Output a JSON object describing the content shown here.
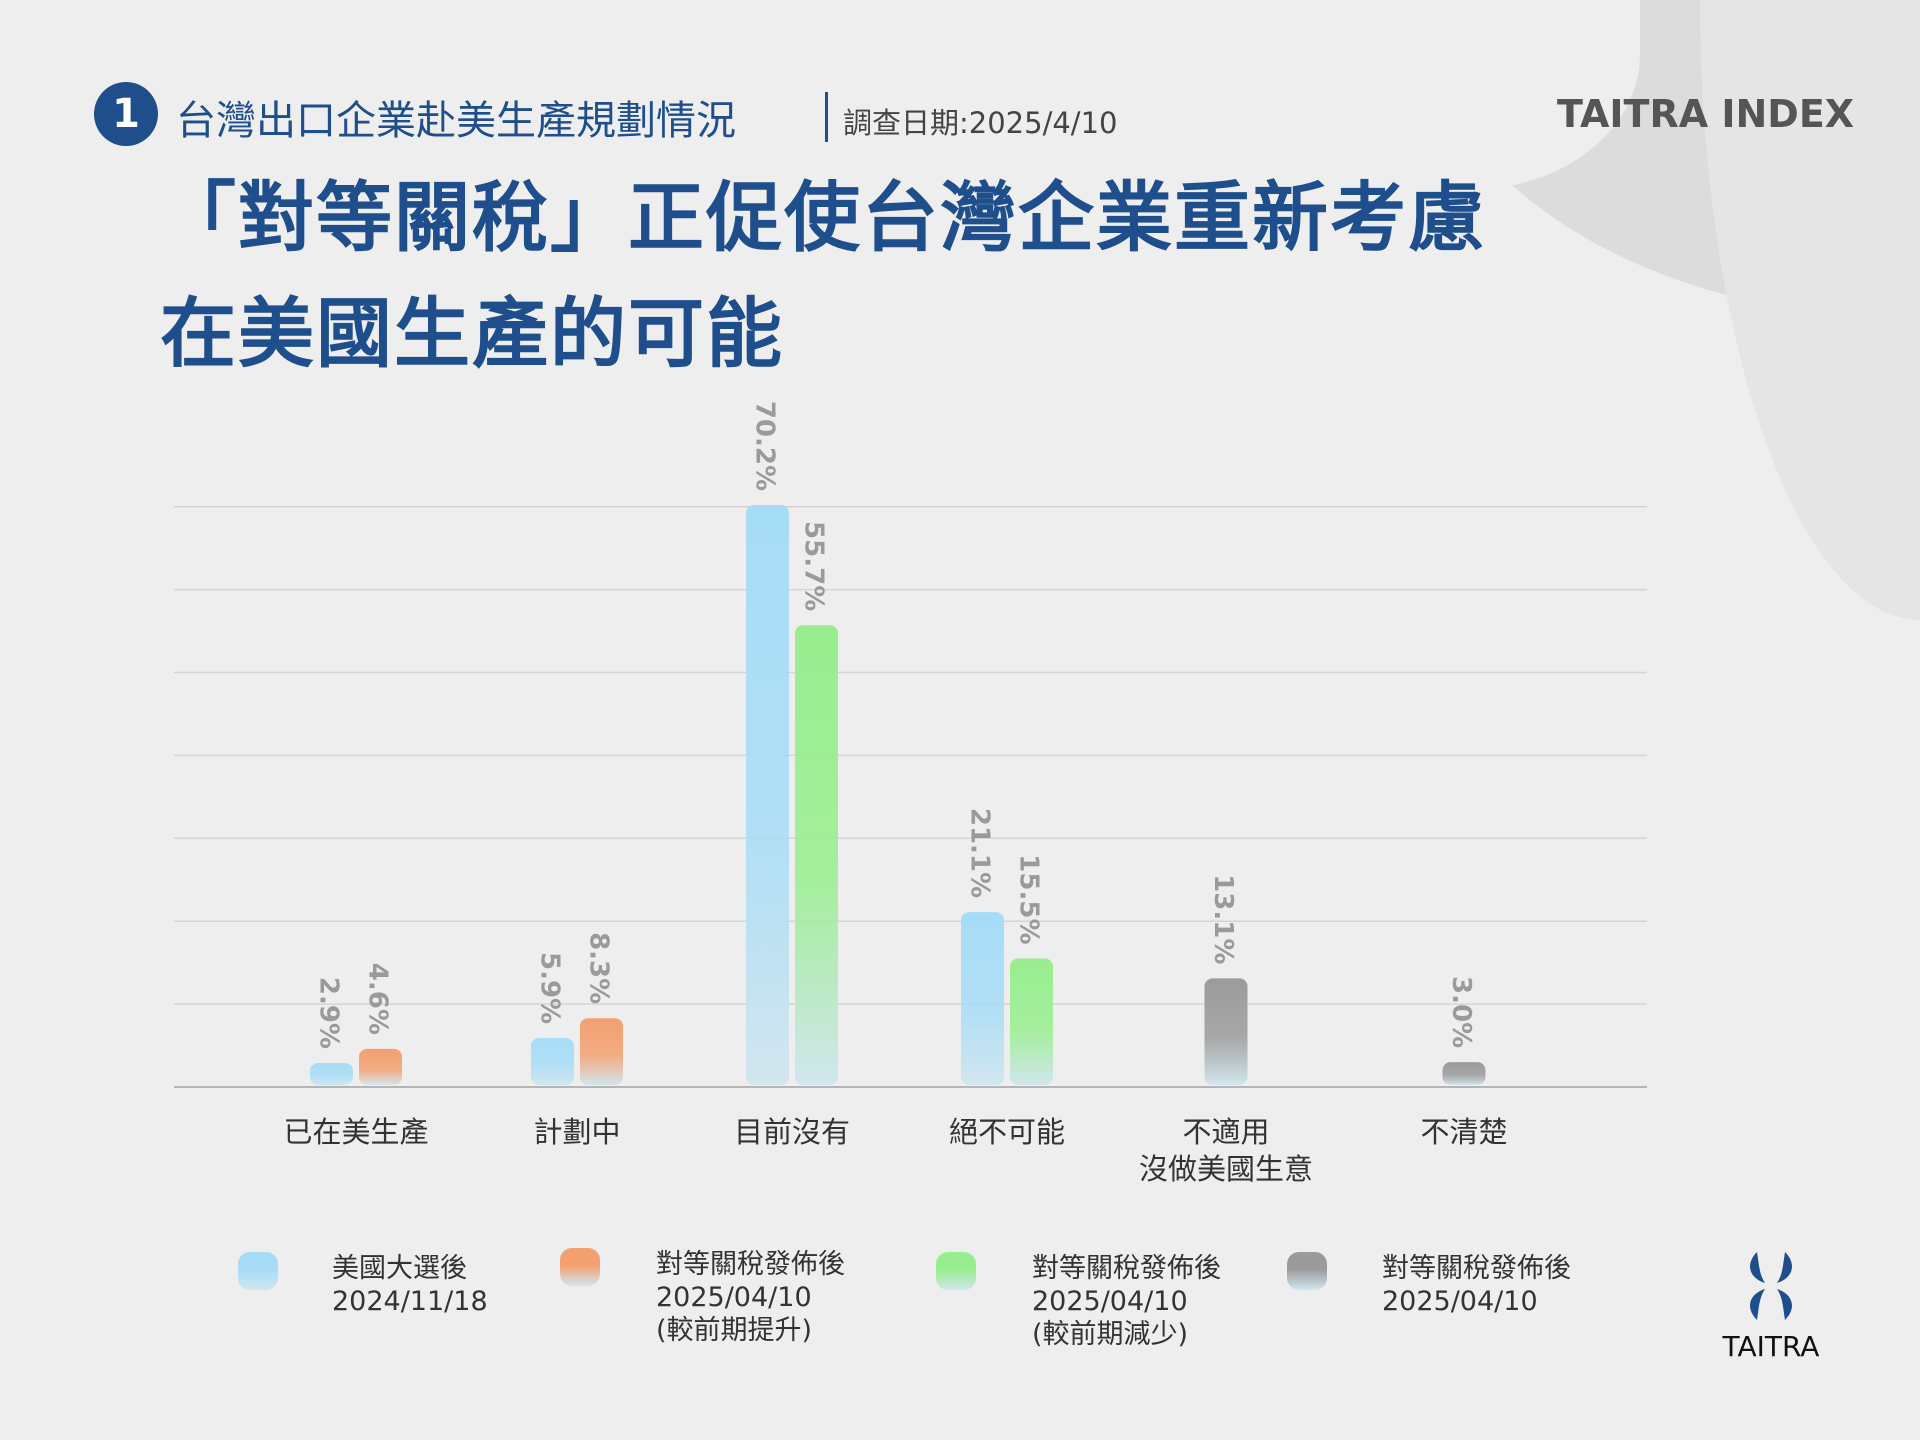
{
  "header": {
    "number": "1",
    "subtitle": "台灣出口企業赴美生產規劃情況",
    "date": "調查日期:2025/4/10",
    "brand": "TAITRA INDEX"
  },
  "title": {
    "line1": "「對等關稅」正促使台灣企業重新考慮",
    "line2": "在美國生產的可能"
  },
  "logo": {
    "text": "TAITRA"
  },
  "colors": {
    "blue": "#a6dcf7",
    "orange": "#f2a070",
    "green": "#98ee8e",
    "gray": "#9b9b9b",
    "title": "#1f4e8c"
  },
  "chart_data": {
    "type": "bar",
    "ylim": [
      0,
      70
    ],
    "grid": true,
    "categories": [
      "已在美生產",
      "計劃中",
      "目前沒有",
      "絕不可能",
      "不適用\n沒做美國生意",
      "不清楚"
    ],
    "category_lines": [
      [
        "已在美生產"
      ],
      [
        "計劃中"
      ],
      [
        "目前沒有"
      ],
      [
        "絕不可能"
      ],
      [
        "不適用",
        "沒做美國生意"
      ],
      [
        "不清楚"
      ]
    ],
    "series": [
      {
        "name": "美國大選後 2024/11/18",
        "color": "#a6dcf7",
        "values": [
          2.9,
          5.9,
          70.2,
          21.1,
          null,
          null
        ]
      },
      {
        "name": "對等關稅發佈後 2025/04/10 (較前期提升)",
        "color": "#f2a070",
        "values": [
          4.6,
          8.3,
          null,
          null,
          null,
          null
        ]
      },
      {
        "name": "對等關稅發佈後 2025/04/10 (較前期減少)",
        "color": "#98ee8e",
        "values": [
          null,
          null,
          55.7,
          15.5,
          null,
          null
        ]
      },
      {
        "name": "對等關稅發佈後 2025/04/10",
        "color": "#9b9b9b",
        "values": [
          null,
          null,
          null,
          null,
          13.1,
          3.0
        ]
      }
    ],
    "data_labels": [
      "2.9%",
      "4.6%",
      "5.9%",
      "8.3%",
      "70.2%",
      "55.7%",
      "21.1%",
      "15.5%",
      "13.1%",
      "3.0%"
    ],
    "legend": [
      {
        "lines": [
          "美國大選後",
          "2024/11/18"
        ],
        "color": "#a6dcf7"
      },
      {
        "lines": [
          "對等關稅發佈後",
          "2025/04/10",
          "(較前期提升)"
        ],
        "color": "#f2a070"
      },
      {
        "lines": [
          "對等關稅發佈後",
          "2025/04/10",
          "(較前期減少)"
        ],
        "color": "#98ee8e"
      },
      {
        "lines": [
          "對等關稅發佈後",
          "2025/04/10"
        ],
        "color": "#9b9b9b"
      }
    ],
    "legend_position": "bottom"
  }
}
